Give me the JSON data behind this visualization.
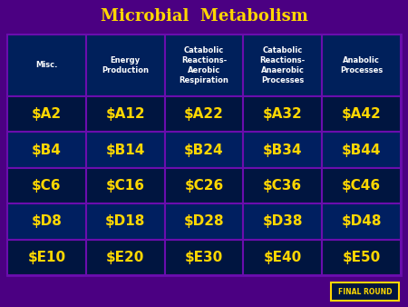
{
  "title": "Microbial  Metabolism",
  "title_color": "#FFD700",
  "title_fontsize": 13,
  "outer_bg_color": "#4B0082",
  "table_border_color": "#6A0DAD",
  "header_bg_color": "#00205B",
  "header_text_color": "#FFFFFF",
  "header_fontsize": 6.0,
  "cell_bg_color_dark": "#001540",
  "cell_bg_color_light": "#001F60",
  "cell_text_color": "#FFD700",
  "cell_fontsize": 11,
  "grid_color": "#5B0080",
  "headers": [
    "Misc.",
    "Energy\nProduction",
    "Catabolic\nReactions-\nAerobic\nRespiration",
    "Catabolic\nReactions-\nAnaerobic\nProcesses",
    "Anabolic\nProcesses"
  ],
  "rows": [
    [
      "$A2",
      "$A12",
      "$A22",
      "$A32",
      "$A42"
    ],
    [
      "$B4",
      "$B14",
      "$B24",
      "$B34",
      "$B44"
    ],
    [
      "$C6",
      "$C16",
      "$C26",
      "$C36",
      "$C46"
    ],
    [
      "$D8",
      "$D18",
      "$D28",
      "$D38",
      "$D48"
    ],
    [
      "$E10",
      "$E20",
      "$E30",
      "$E40",
      "$E50"
    ]
  ],
  "final_round_text": "FINAL ROUND",
  "final_round_bg": "#001540",
  "final_round_border": "#FFD700",
  "final_round_fontsize": 5.5,
  "figsize": [
    4.5,
    3.38
  ],
  "dpi": 100
}
